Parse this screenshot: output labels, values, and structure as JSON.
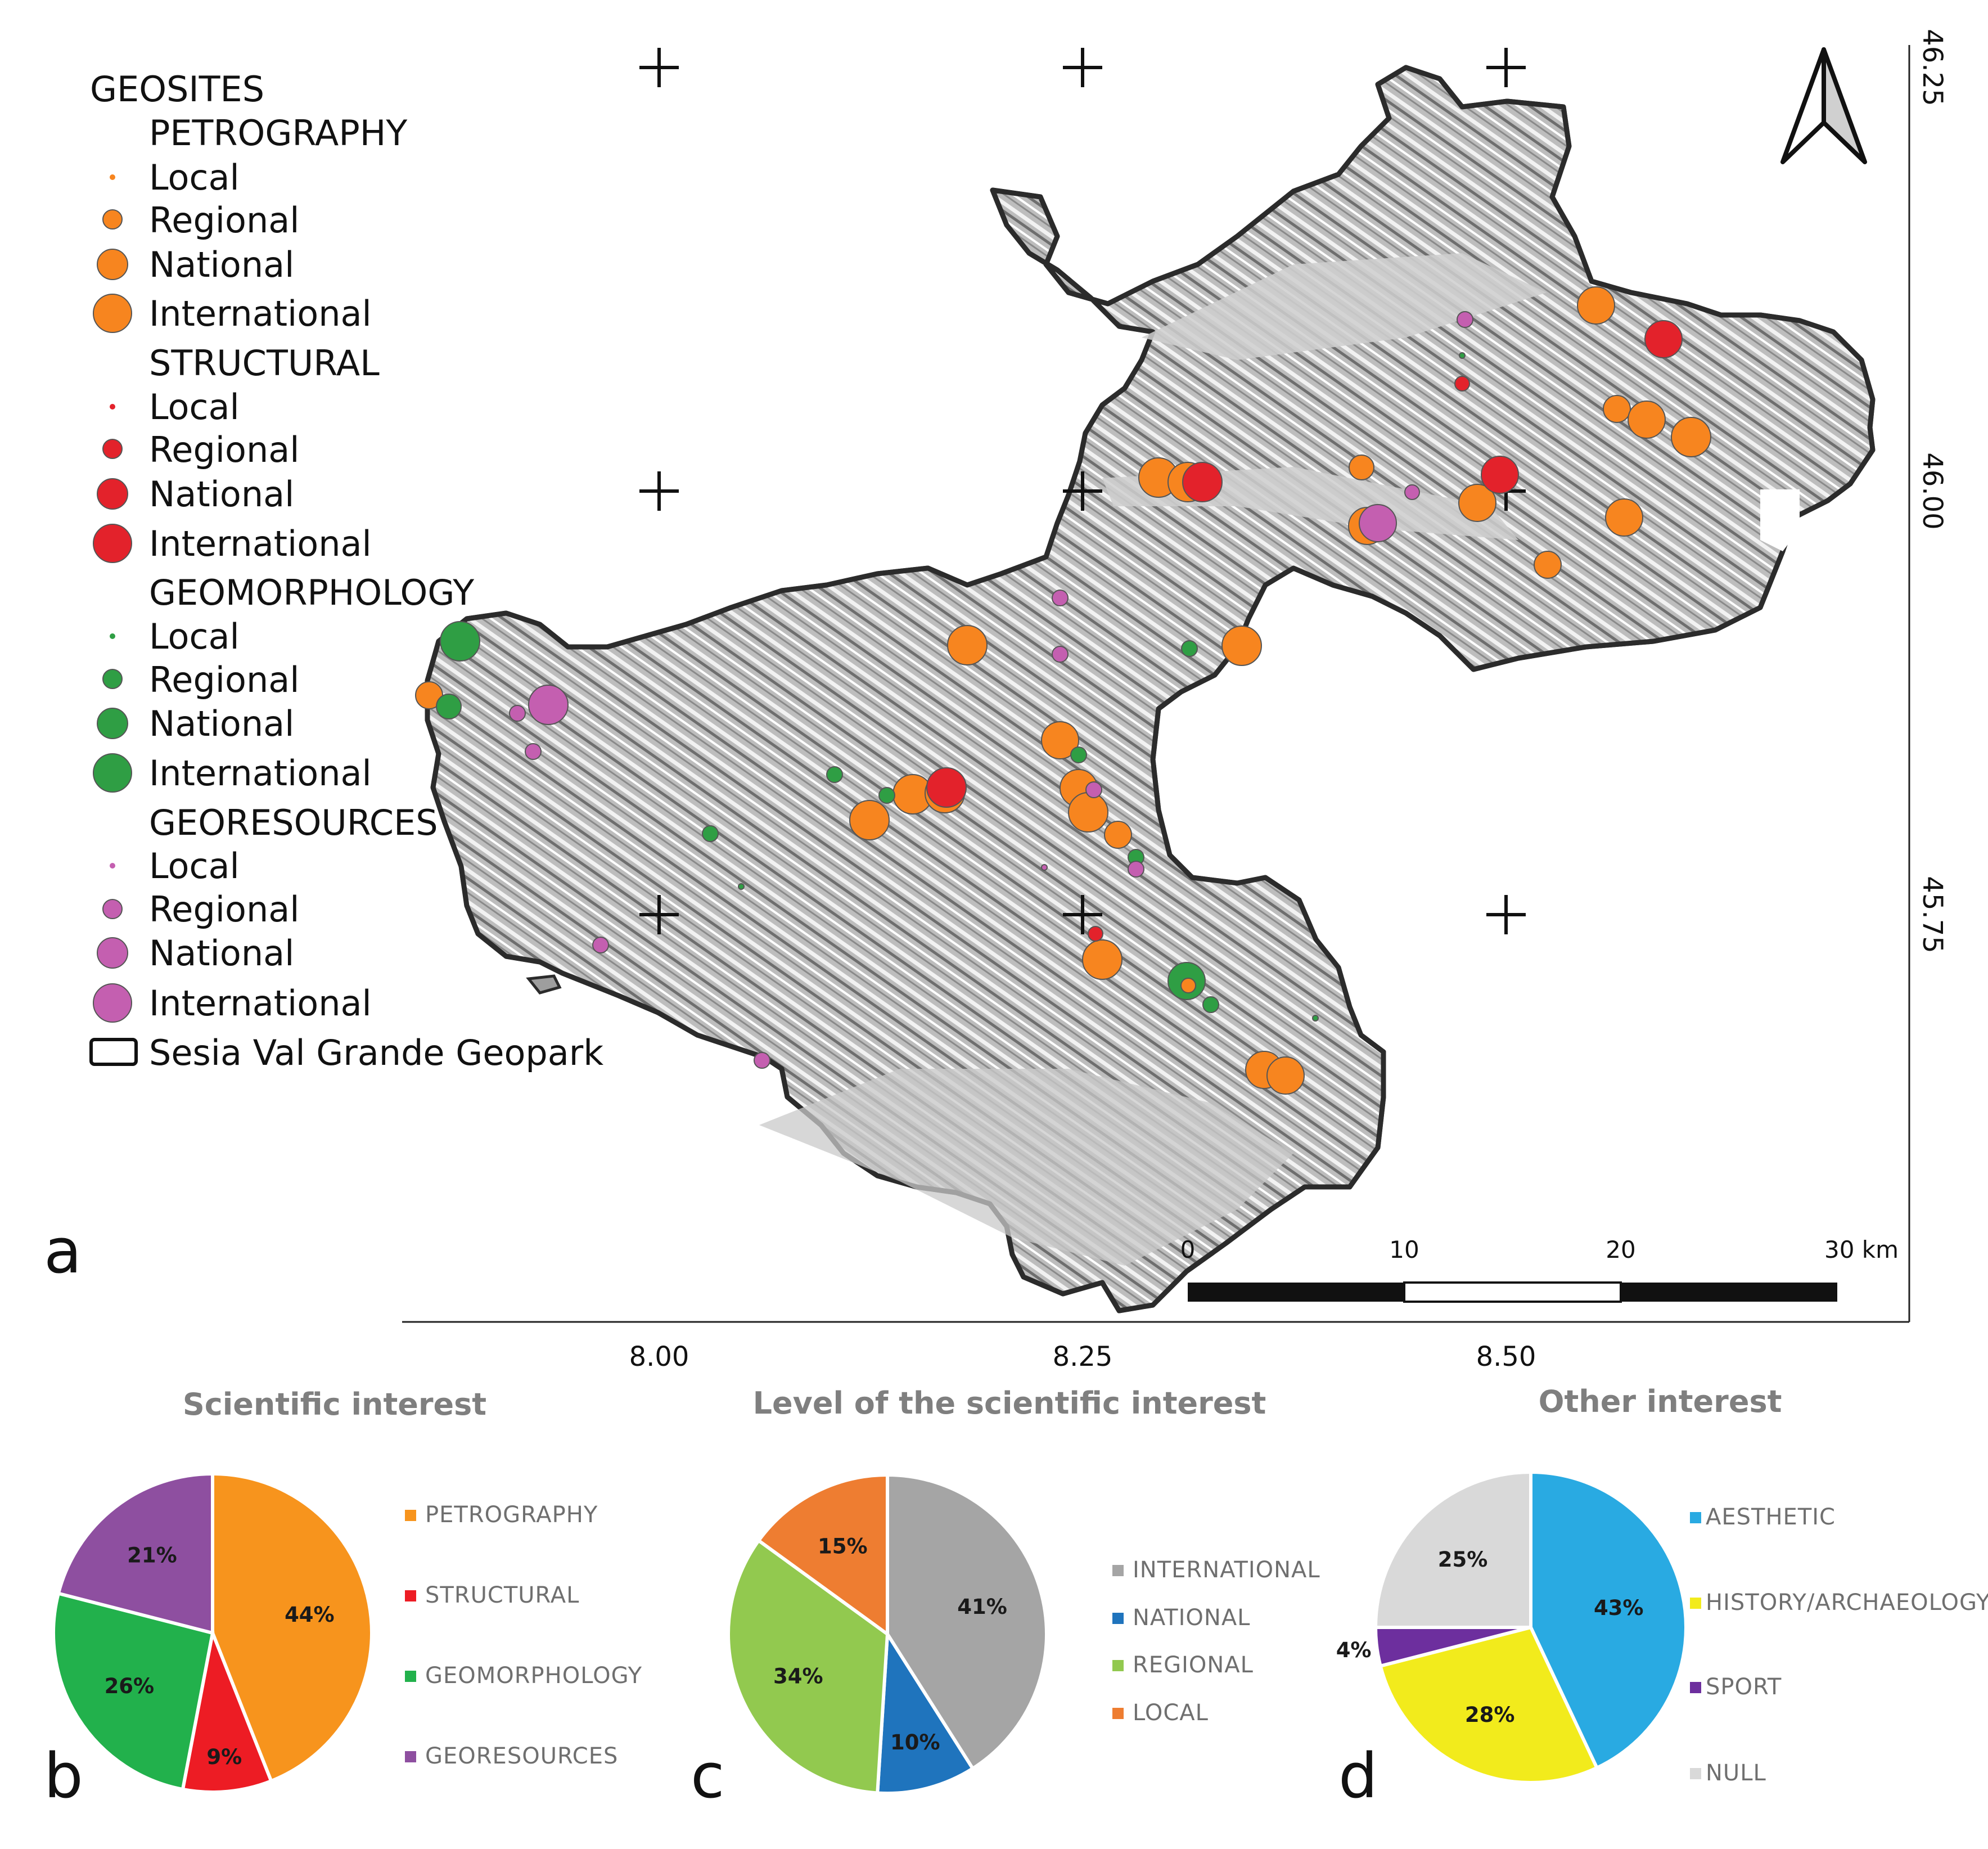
{
  "map": {
    "legend": {
      "title": "GEOSITES",
      "groups": [
        {
          "name": "PETROGRAPHY",
          "color": "#f7851f",
          "items": [
            "Local",
            "Regional",
            "National",
            "International"
          ]
        },
        {
          "name": "STRUCTURAL",
          "color": "#e3222b",
          "items": [
            "Local",
            "Regional",
            "National",
            "International"
          ]
        },
        {
          "name": "GEOMORPHOLOGY",
          "color": "#2f9e44",
          "items": [
            "Local",
            "Regional",
            "National",
            "International"
          ]
        },
        {
          "name": "GEORESOURCES",
          "color": "#c45fb0",
          "items": [
            "Local",
            "Regional",
            "National",
            "International"
          ]
        }
      ],
      "boundary_label": "Sesia Val Grande Geopark"
    },
    "x_ticks": [
      "8.00",
      "8.25",
      "8.50"
    ],
    "y_ticks": [
      "46.25",
      "46.00",
      "45.75"
    ],
    "scale_bar": {
      "labels": [
        "0",
        "10",
        "20",
        "30 km"
      ]
    },
    "panel_label": "a",
    "north_arrow": "north-arrow-icon",
    "colors": {
      "land": "#b9b9b9",
      "boundary": "#2b2b2b"
    }
  },
  "pies": [
    {
      "panel_label": "b",
      "title": "Scientific interest",
      "chart_data": {
        "type": "pie",
        "slices": [
          {
            "label": "PETROGRAPHY",
            "value": 44,
            "color": "#f7941d"
          },
          {
            "label": "STRUCTURAL",
            "value": 9,
            "color": "#ed1c24"
          },
          {
            "label": "GEOMORPHOLOGY",
            "value": 26,
            "color": "#22b14c"
          },
          {
            "label": "GEORESOURCES",
            "value": 21,
            "color": "#8e4fa0"
          }
        ]
      }
    },
    {
      "panel_label": "c",
      "title": "Level of the scientific interest",
      "chart_data": {
        "type": "pie",
        "slices": [
          {
            "label": "INTERNATIONAL",
            "value": 41,
            "color": "#a5a5a5"
          },
          {
            "label": "NATIONAL",
            "value": 10,
            "color": "#1f74bd"
          },
          {
            "label": "REGIONAL",
            "value": 34,
            "color": "#92c94f"
          },
          {
            "label": "LOCAL",
            "value": 15,
            "color": "#ee7d31"
          }
        ]
      }
    },
    {
      "panel_label": "d",
      "title": "Other interest",
      "chart_data": {
        "type": "pie",
        "slices": [
          {
            "label": "AESTHETIC",
            "value": 43,
            "color": "#29aae2"
          },
          {
            "label": "HISTORY/ARCHAEOLOGY",
            "value": 28,
            "color": "#f2eb1c"
          },
          {
            "label": "SPORT",
            "value": 4,
            "color": "#6d2f9e"
          },
          {
            "label": "NULL",
            "value": 25,
            "color": "#d9d9d9"
          }
        ]
      }
    }
  ]
}
